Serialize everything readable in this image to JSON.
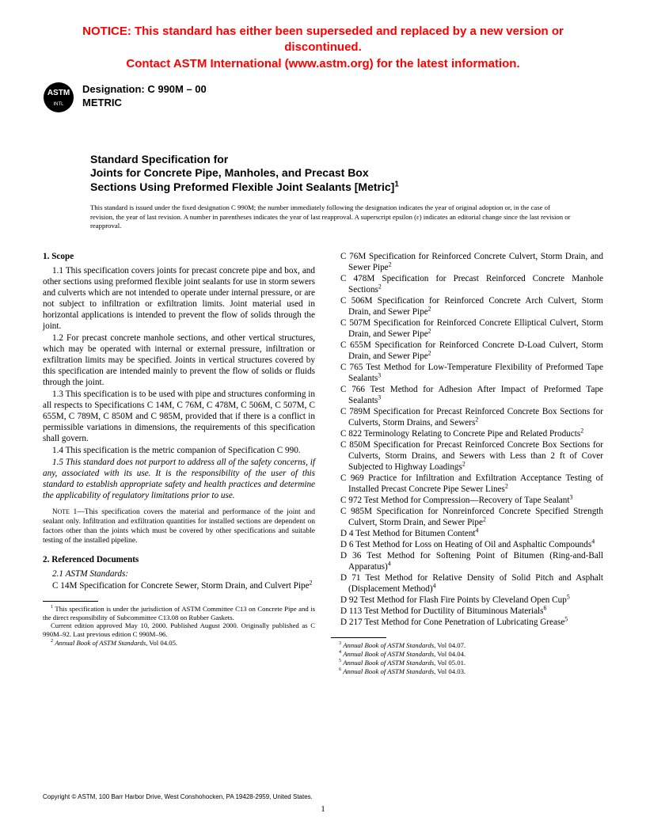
{
  "notice": {
    "line1": "NOTICE: This standard has either been superseded and replaced by a new version or discontinued.",
    "line2": "Contact ASTM International (www.astm.org) for the latest information."
  },
  "header": {
    "designation_label": "Designation: C 990M – 00",
    "metric_label": "METRIC"
  },
  "title_block": {
    "pretitle": "Standard Specification for",
    "title_line1": "Joints for Concrete Pipe, Manholes, and Precast Box",
    "title_line2": "Sections Using Preformed Flexible Joint Sealants [Metric]"
  },
  "issue_note": "This standard is issued under the fixed designation C 990M; the number immediately following the designation indicates the year of original adoption or, in the case of revision, the year of last revision. A number in parentheses indicates the year of last reapproval. A superscript epsilon (ε) indicates an editorial change since the last revision or reapproval.",
  "scope": {
    "heading": "1. Scope",
    "p1": "1.1 This specification covers joints for precast concrete pipe and box, and other sections using preformed flexible joint sealants for use in storm sewers and culverts which are not intended to operate under internal pressure, or are not subject to infiltration or exfiltration limits. Joint material used in horizontal applications is intended to prevent the flow of solids through the joint.",
    "p2": "1.2 For precast concrete manhole sections, and other vertical structures, which may be operated with internal or external pressure, infiltration or exfiltration limits may be specified. Joints in vertical structures covered by this specification are intended mainly to prevent the flow of solids or fluids through the joint.",
    "p3": "1.3 This specification is to be used with pipe and structures conforming in all respects to Specifications C 14M, C 76M, C 478M, C 506M, C 507M, C 655M, C 789M, C 850M and C 985M, provided that if there is a conflict in permissible variations in dimensions, the requirements of this specification shall govern.",
    "p4": "1.4 This specification is the metric companion of Specification C 990.",
    "p5": "1.5 This standard does not purport to address all of the safety concerns, if any, associated with its use. It is the responsibility of the user of this standard to establish appropriate safety and health practices and determine the applicability of regulatory limitations prior to use."
  },
  "note1": "1—This specification covers the material and performance of the joint and sealant only. Infiltration and exfiltration quantities for installed sections are dependent on factors other than the joints which must be covered by other specifications and suitable testing of the installed pipeline.",
  "refdocs": {
    "heading": "2. Referenced Documents",
    "sub": "2.1 ASTM Standards:",
    "left_first": "C 14M  Specification for Concrete Sewer, Storm Drain, and Culvert Pipe",
    "items": [
      {
        "t": "C 76M Specification for Reinforced Concrete Culvert, Storm Drain, and Sewer Pipe",
        "s": "2"
      },
      {
        "t": "C 478M Specification for Precast Reinforced Concrete Manhole Sections",
        "s": "2"
      },
      {
        "t": "C 506M Specification for Reinforced Concrete Arch Culvert, Storm Drain, and Sewer Pipe",
        "s": "2"
      },
      {
        "t": "C 507M Specification for Reinforced Concrete Elliptical Culvert, Storm Drain, and Sewer Pipe",
        "s": "2"
      },
      {
        "t": "C 655M Specification for Reinforced Concrete D-Load Culvert, Storm Drain, and Sewer Pipe",
        "s": "2"
      },
      {
        "t": "C 765 Test Method for Low-Temperature Flexibility of Preformed Tape Sealants",
        "s": "3"
      },
      {
        "t": "C 766  Test Method for Adhesion After Impact of Preformed Tape Sealants",
        "s": "3"
      },
      {
        "t": "C 789M  Specification for Precast Reinforced Concrete Box Sections for Culverts, Storm Drains, and Sewers",
        "s": "2"
      },
      {
        "t": "C 822  Terminology Relating to Concrete Pipe and Related Products",
        "s": "2"
      },
      {
        "t": "C 850M  Specification for Precast Reinforced Concrete Box Sections for Culverts, Storm Drains, and Sewers with Less than 2 ft of Cover Subjected to Highway Loadings",
        "s": "2"
      },
      {
        "t": "C 969  Practice for Infiltration and Exfiltration Acceptance Testing of Installed Precast Concrete Pipe Sewer Lines",
        "s": "2"
      },
      {
        "t": "C 972 Test Method for Compression—Recovery of Tape Sealant",
        "s": "3"
      },
      {
        "t": "C 985M Specification for Nonreinforced Concrete Specified Strength Culvert, Storm Drain, and Sewer Pipe",
        "s": "2"
      },
      {
        "t": "D 4  Test Method for Bitumen Content",
        "s": "4"
      },
      {
        "t": "D 6  Test Method for Loss on Heating of Oil and Asphaltic Compounds",
        "s": "4"
      },
      {
        "t": "D 36 Test Method for Softening Point of Bitumen (Ring-and-Ball Apparatus)",
        "s": "4"
      },
      {
        "t": "D 71  Test Method for Relative Density of Solid Pitch and Asphalt (Displacement Method)",
        "s": "4"
      },
      {
        "t": "D 92  Test Method for Flash Fire Points by Cleveland Open Cup",
        "s": "5"
      },
      {
        "t": "D 113  Test Method for Ductility of Bituminous Materials",
        "s": "6"
      },
      {
        "t": "D 217 Test Method for Cone Penetration of Lubricating Grease",
        "s": "5"
      }
    ]
  },
  "footnotes_left": {
    "f1a": "This specification is under the jurisdiction of ASTM Committee C13 on Concrete Pipe and is the direct responsibility of Subcommittee C13.08 on Rubber Gaskets.",
    "f1b": "Current edition approved May 10, 2000. Published August 2000. Originally published as C 990M–92. Last previous edition C 990M–96.",
    "f2": "Annual Book of ASTM Standards, Vol 04.05."
  },
  "footnotes_right": {
    "f3": "Annual Book of ASTM Standards, Vol 04.07.",
    "f4": "Annual Book of ASTM Standards, Vol 04.04.",
    "f5": "Annual Book of ASTM Standards, Vol 05.01.",
    "f6": "Annual Book of ASTM Standards, Vol 04.03."
  },
  "copyright": "Copyright © ASTM, 100 Barr Harbor Drive, West Conshohocken, PA 19428-2959, United States.",
  "pagenum": "1"
}
